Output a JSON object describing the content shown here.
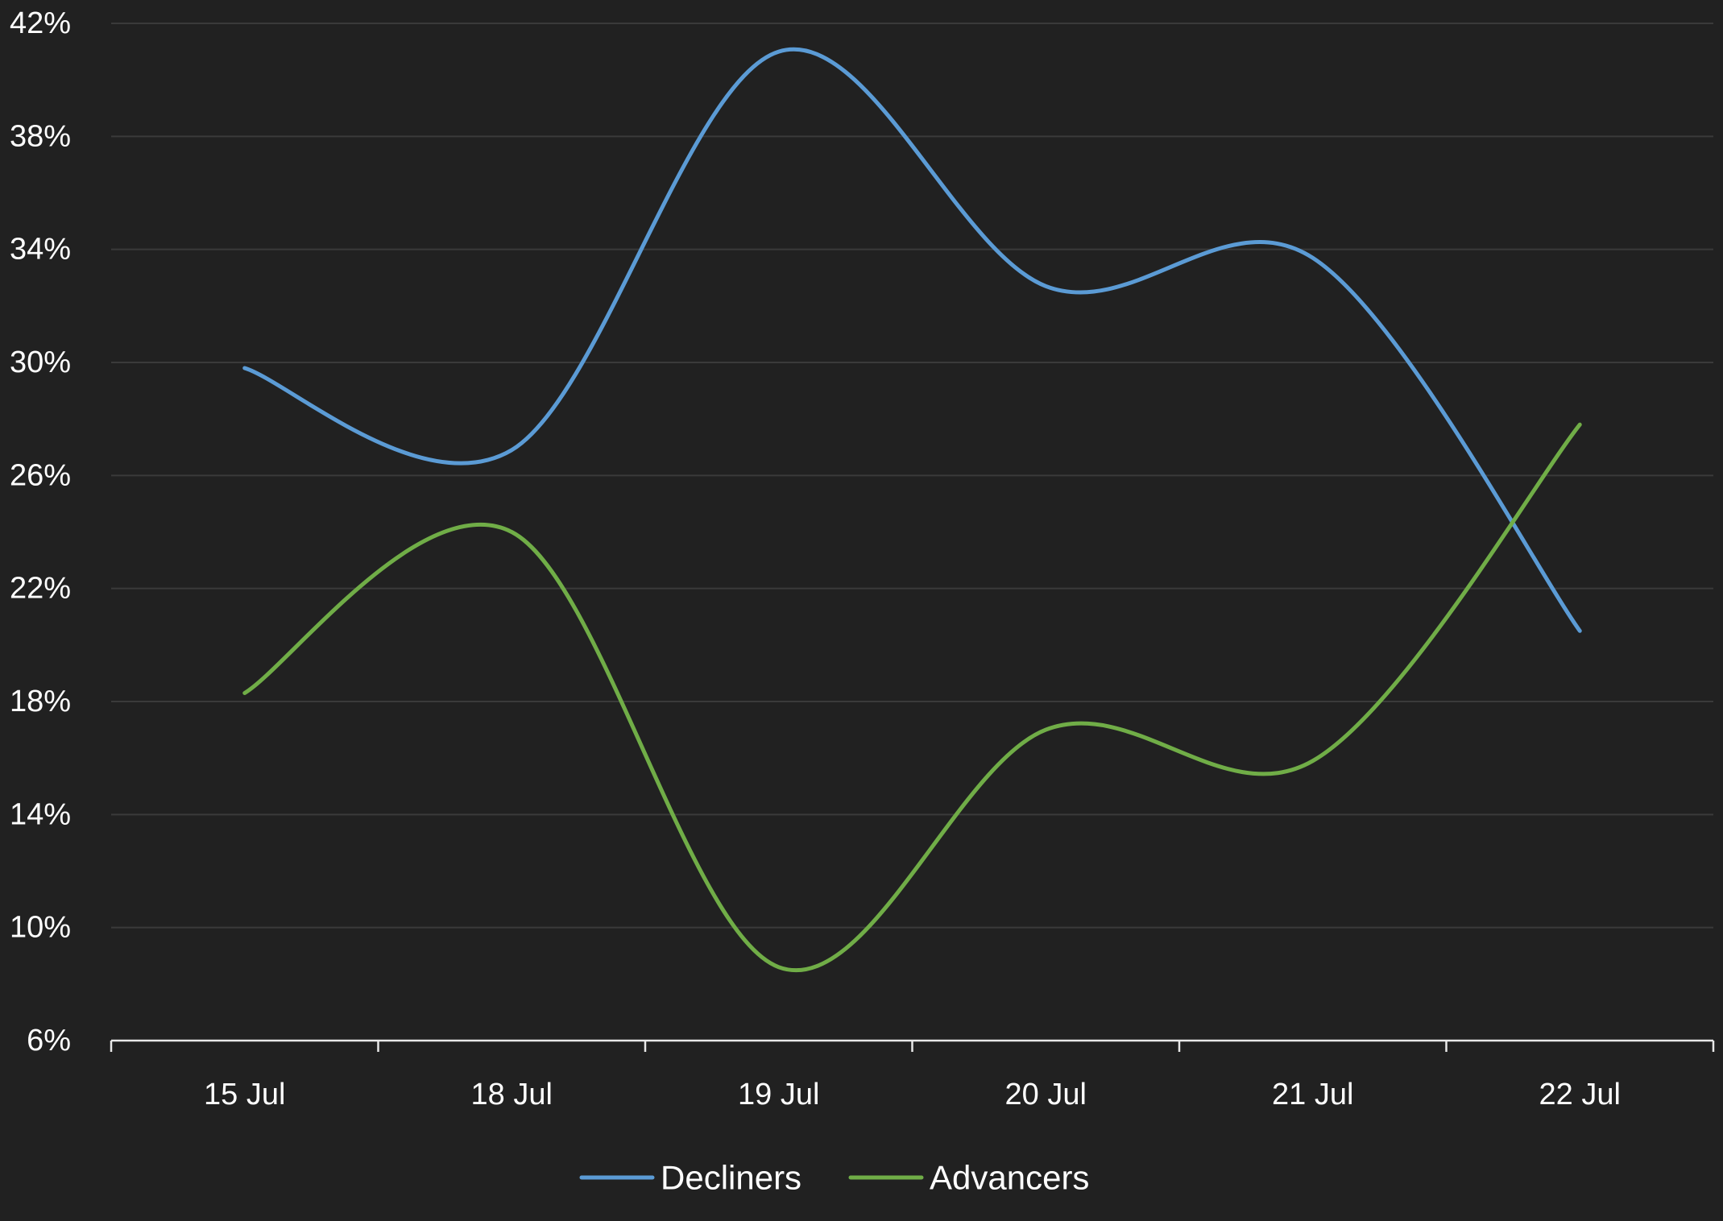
{
  "chart_data": {
    "type": "line",
    "title": "",
    "xlabel": "",
    "ylabel": "",
    "categories": [
      "15 Jul",
      "18 Jul",
      "19 Jul",
      "20 Jul",
      "21 Jul",
      "22 Jul"
    ],
    "ylim": [
      6,
      42
    ],
    "yticks": [
      6,
      10,
      14,
      18,
      22,
      26,
      30,
      34,
      38,
      42
    ],
    "ytick_labels": [
      "6%",
      "10%",
      "14%",
      "18%",
      "22%",
      "26%",
      "30%",
      "34%",
      "38%",
      "42%"
    ],
    "grid": true,
    "smooth": true,
    "legend_position": "bottom",
    "series": [
      {
        "name": "Decliners",
        "color": "#5b9bd5",
        "values": [
          29.8,
          26.9,
          41.0,
          32.7,
          33.7,
          20.5
        ]
      },
      {
        "name": "Advancers",
        "color": "#70ad47",
        "values": [
          18.3,
          24.0,
          8.6,
          17.0,
          15.9,
          27.8
        ]
      }
    ]
  },
  "colors": {
    "background": "#212121",
    "gridline": "#3a3a3a",
    "axis": "#e8e8e8",
    "text": "#ffffff"
  }
}
